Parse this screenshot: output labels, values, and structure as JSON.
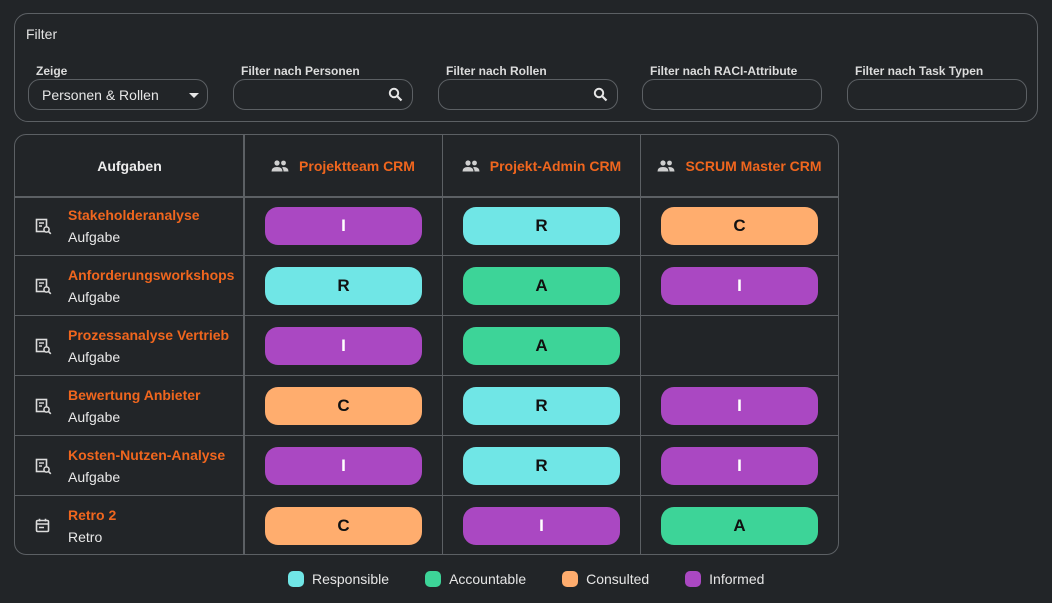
{
  "filter": {
    "title": "Filter",
    "show": {
      "label": "Zeige",
      "value": "Personen & Rollen"
    },
    "persons": {
      "label": "Filter nach Personen",
      "value": ""
    },
    "roles": {
      "label": "Filter nach Rollen",
      "value": ""
    },
    "raci": {
      "label": "Filter nach RACI-Attribute",
      "value": ""
    },
    "tasktypes": {
      "label": "Filter nach Task Typen",
      "value": ""
    }
  },
  "table": {
    "task_header": "Aufgaben",
    "columns": [
      {
        "label": "Projektteam CRM",
        "icon": "group-icon"
      },
      {
        "label": "Projekt-Admin CRM",
        "icon": "group-icon"
      },
      {
        "label": "SCRUM Master CRM",
        "icon": "group-icon"
      }
    ],
    "rows": [
      {
        "name": "Stakeholderanalyse",
        "type": "Aufgabe",
        "icon": "task-search-icon",
        "cells": [
          "I",
          "R",
          "C"
        ]
      },
      {
        "name": "Anforderungsworkshops",
        "type": "Aufgabe",
        "icon": "task-search-icon",
        "cells": [
          "R",
          "A",
          "I"
        ]
      },
      {
        "name": "Prozessanalyse Vertrieb",
        "type": "Aufgabe",
        "icon": "task-search-icon",
        "cells": [
          "I",
          "A",
          ""
        ]
      },
      {
        "name": "Bewertung Anbieter",
        "type": "Aufgabe",
        "icon": "task-search-icon",
        "cells": [
          "C",
          "R",
          "I"
        ]
      },
      {
        "name": "Kosten-Nutzen-Analyse",
        "type": "Aufgabe",
        "icon": "task-search-icon",
        "cells": [
          "I",
          "R",
          "I"
        ]
      },
      {
        "name": "Retro 2",
        "type": "Retro",
        "icon": "calendar-icon",
        "cells": [
          "C",
          "I",
          "A"
        ]
      }
    ]
  },
  "legend": [
    {
      "label": "Responsible",
      "color": "#70e6e6"
    },
    {
      "label": "Accountable",
      "color": "#3dd498"
    },
    {
      "label": "Consulted",
      "color": "#ffad6e"
    },
    {
      "label": "Informed",
      "color": "#aa48c2"
    }
  ]
}
